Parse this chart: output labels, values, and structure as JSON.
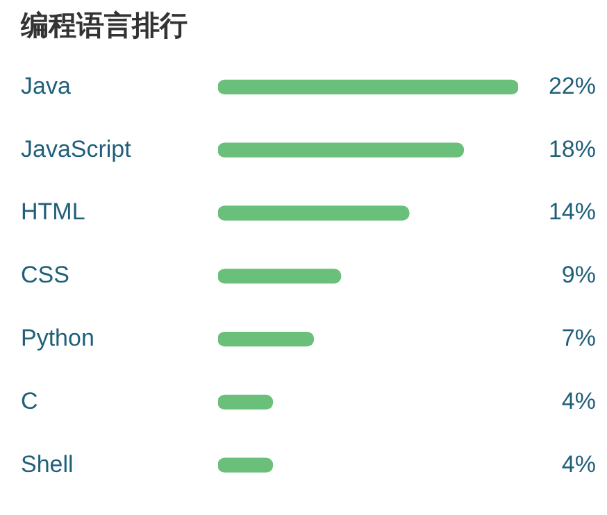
{
  "chart_data": {
    "type": "bar",
    "orientation": "horizontal",
    "title": "编程语言排行",
    "categories": [
      "Java",
      "JavaScript",
      "HTML",
      "CSS",
      "Python",
      "C",
      "Shell"
    ],
    "values": [
      22,
      18,
      14,
      9,
      7,
      4,
      4
    ],
    "value_labels": [
      "22%",
      "18%",
      "14%",
      "9%",
      "7%",
      "4%",
      "4%"
    ],
    "color": "#6abf7b",
    "xlim": [
      0,
      22
    ],
    "tick_labels": "y",
    "legend": false
  }
}
